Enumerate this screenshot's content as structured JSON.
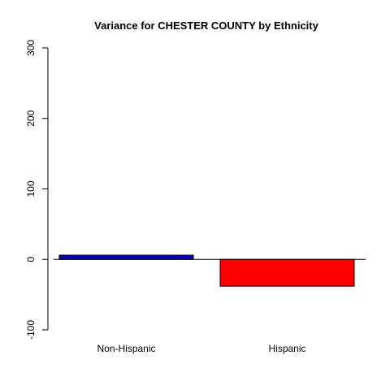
{
  "chart_data": {
    "type": "bar",
    "title": "Variance for CHESTER COUNTY by Ethnicity",
    "xlabel": "",
    "ylabel": "",
    "categories": [
      "Non-Hispanic",
      "Hispanic"
    ],
    "values": [
      6,
      -38
    ],
    "colors": [
      "#0000cd",
      "#ff0000"
    ],
    "ylim": [
      -100,
      300
    ],
    "yticks": [
      -100,
      0,
      100,
      200,
      300
    ],
    "baseline": 0,
    "grid": false,
    "legend": "none"
  }
}
